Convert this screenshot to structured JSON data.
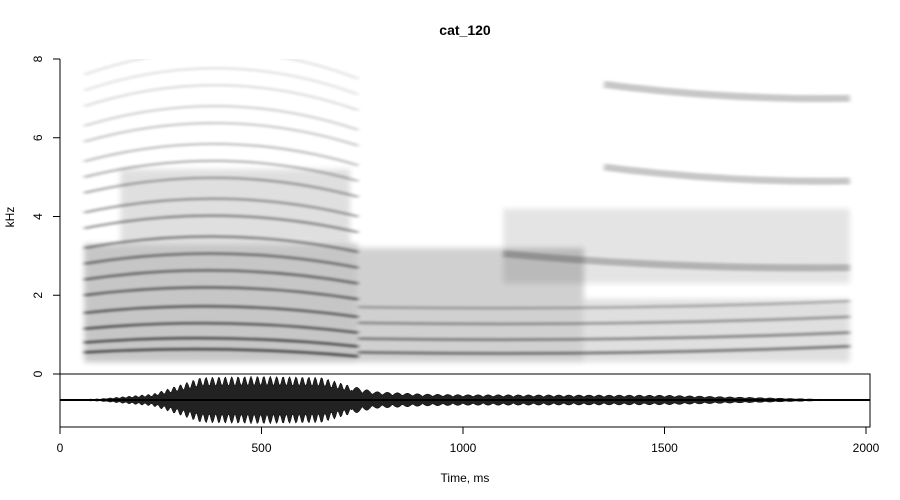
{
  "chart_data": {
    "type": "heatmap",
    "title": "cat_120",
    "xlabel": "Time, ms",
    "ylabel": "kHz",
    "xlim": [
      0,
      2000
    ],
    "ylim": [
      0,
      8
    ],
    "x_ticks": [
      "0",
      "500",
      "1000",
      "1500",
      "2000"
    ],
    "y_ticks": [
      "0",
      "2",
      "4",
      "6",
      "8"
    ],
    "sound_segments_ms": [
      [
        30,
        1970
      ]
    ],
    "harmonic_bands": [
      {
        "start_ms": 60,
        "end_ms": 740,
        "khz": [
          0.55,
          0.8,
          1.15,
          1.55,
          2.0,
          2.4,
          2.8,
          3.2,
          3.7,
          4.1,
          4.6,
          5.0,
          5.4,
          5.9,
          6.3,
          6.8,
          7.2,
          7.6
        ]
      },
      {
        "start_ms": 740,
        "end_ms": 1960,
        "khz": [
          0.55,
          0.9,
          1.3,
          1.7
        ]
      }
    ],
    "formant_bands": [
      {
        "start_ms": 1100,
        "end_ms": 1960,
        "khz": 2.7
      },
      {
        "start_ms": 1350,
        "end_ms": 1960,
        "khz": 4.9
      },
      {
        "start_ms": 1350,
        "end_ms": 1960,
        "khz": 7.0
      }
    ],
    "oscillogram": {
      "description": "waveform",
      "envelope_ms": [
        0,
        100,
        230,
        300,
        350,
        500,
        650,
        720,
        780,
        900,
        1000,
        1500,
        1960
      ],
      "envelope_amp": [
        0.0,
        0.05,
        0.25,
        0.65,
        0.95,
        1.0,
        0.95,
        0.6,
        0.35,
        0.25,
        0.22,
        0.2,
        0.0
      ]
    },
    "grid": false,
    "colors": {
      "foreground": "#000000",
      "background": "#ffffff"
    }
  }
}
